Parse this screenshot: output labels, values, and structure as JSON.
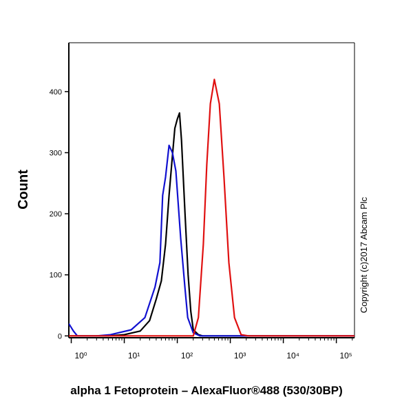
{
  "chart_data": {
    "type": "line",
    "log_x": true,
    "y_label": "Count",
    "x_label": "alpha 1 Fetoprotein – AlexaFluor®488 (530/30BP)",
    "annotation": "Copyright (c)2017 Abcam Plc",
    "xlim": [
      0.9,
      220000
    ],
    "ylim": [
      -3,
      480
    ],
    "xticks": [
      {
        "value": 1,
        "label": "10⁰"
      },
      {
        "value": 10,
        "label": "10¹"
      },
      {
        "value": 100,
        "label": "10²"
      },
      {
        "value": 1000,
        "label": "10³"
      },
      {
        "value": 10000,
        "label": "10⁴"
      },
      {
        "value": 100000,
        "label": "10⁵"
      }
    ],
    "yticks": [
      0,
      100,
      200,
      300,
      400
    ],
    "series": [
      {
        "color": "#000000",
        "x": [
          0.9,
          5,
          10,
          20,
          30,
          40,
          50,
          60,
          70,
          80,
          90,
          100,
          110,
          120,
          140,
          160,
          180,
          200,
          250,
          300,
          220000
        ],
        "values": [
          0,
          0,
          2,
          8,
          25,
          60,
          90,
          150,
          230,
          290,
          340,
          355,
          365,
          320,
          200,
          100,
          40,
          10,
          2,
          0,
          0
        ]
      },
      {
        "color": "#1010d0",
        "x": [
          0.9,
          1.1,
          1.3,
          3,
          5.5,
          13.5,
          24.5,
          38,
          47,
          53,
          60,
          70,
          81,
          94,
          116,
          139,
          157,
          200,
          267,
          220000
        ],
        "values": [
          20,
          8,
          0,
          0,
          2,
          10,
          30,
          80,
          120,
          230,
          260,
          312,
          300,
          270,
          160,
          80,
          30,
          5,
          0,
          0
        ]
      },
      {
        "color": "#e01010",
        "x": [
          0.9,
          200,
          250,
          310,
          360,
          420,
          500,
          620,
          760,
          940,
          1200,
          1600,
          2200,
          220000
        ],
        "values": [
          0,
          0,
          30,
          150,
          280,
          380,
          420,
          380,
          260,
          120,
          30,
          2,
          0,
          0
        ]
      }
    ]
  }
}
